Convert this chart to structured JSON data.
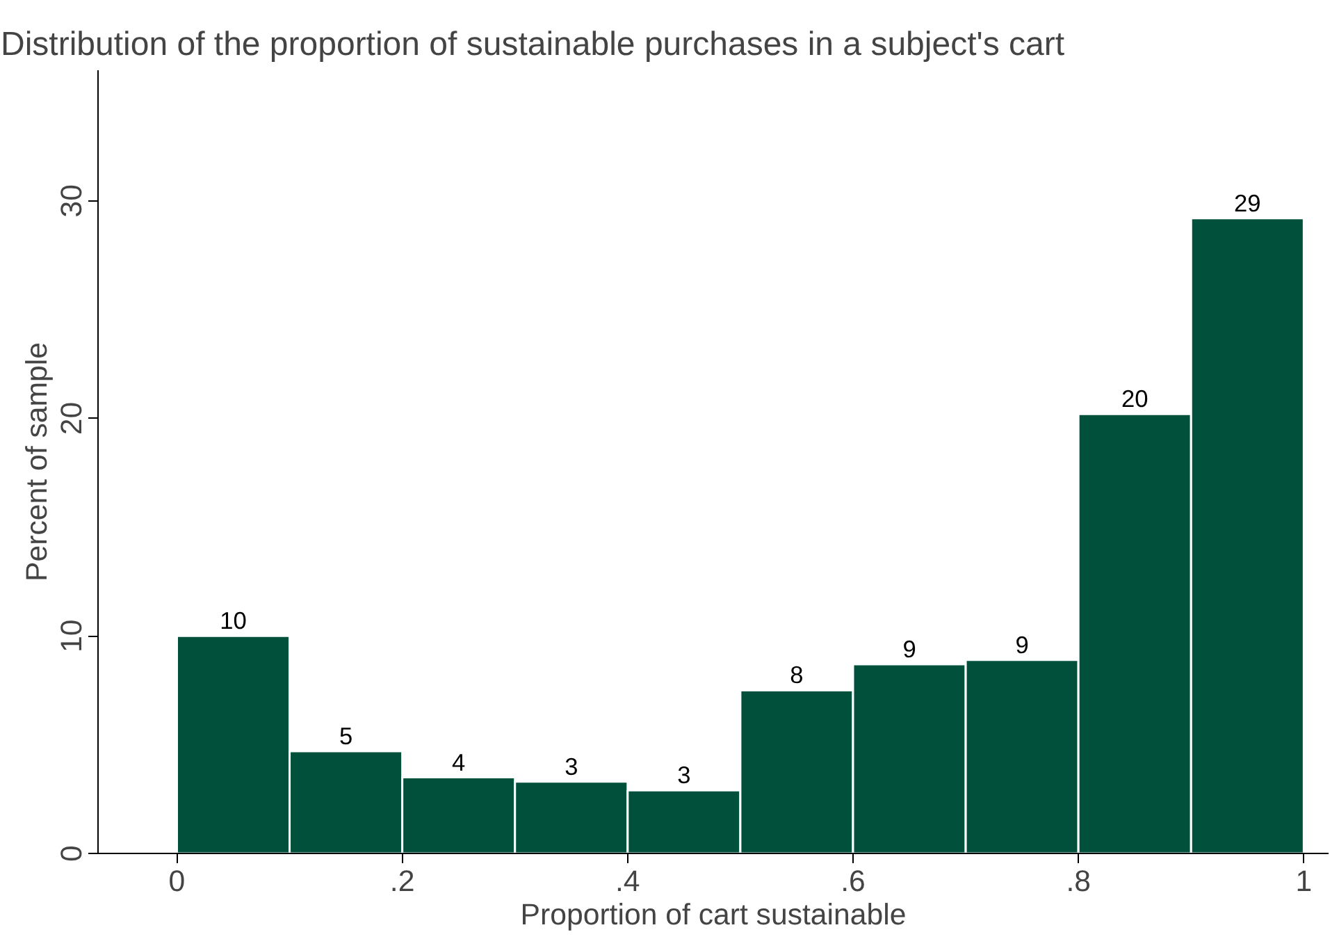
{
  "chart_data": {
    "type": "histogram",
    "title": "Distribution of the proportion of sustainable purchases in a subject's cart",
    "xlabel": "Proportion of cart sustainable",
    "ylabel": "Percent of sample",
    "bins": [
      0,
      0.1,
      0.2,
      0.3,
      0.4,
      0.5,
      0.6,
      0.7,
      0.8,
      0.9,
      1
    ],
    "values": [
      10.0,
      4.7,
      3.5,
      3.3,
      2.9,
      7.5,
      8.7,
      8.9,
      20.2,
      29.2
    ],
    "value_labels": [
      "10",
      "5",
      "4",
      "3",
      "3",
      "8",
      "9",
      "9",
      "20",
      "29"
    ],
    "color": "#00503c",
    "xlim": [
      -0.07,
      1.022
    ],
    "ylim": [
      0,
      36
    ],
    "xticks": [
      {
        "value": 0,
        "label": "0"
      },
      {
        "value": 0.2,
        "label": ".2"
      },
      {
        "value": 0.4,
        "label": ".4"
      },
      {
        "value": 0.6,
        "label": ".6"
      },
      {
        "value": 0.8,
        "label": ".8"
      },
      {
        "value": 1,
        "label": "1"
      }
    ],
    "yticks": [
      0,
      10,
      20,
      30
    ],
    "grid": false
  }
}
